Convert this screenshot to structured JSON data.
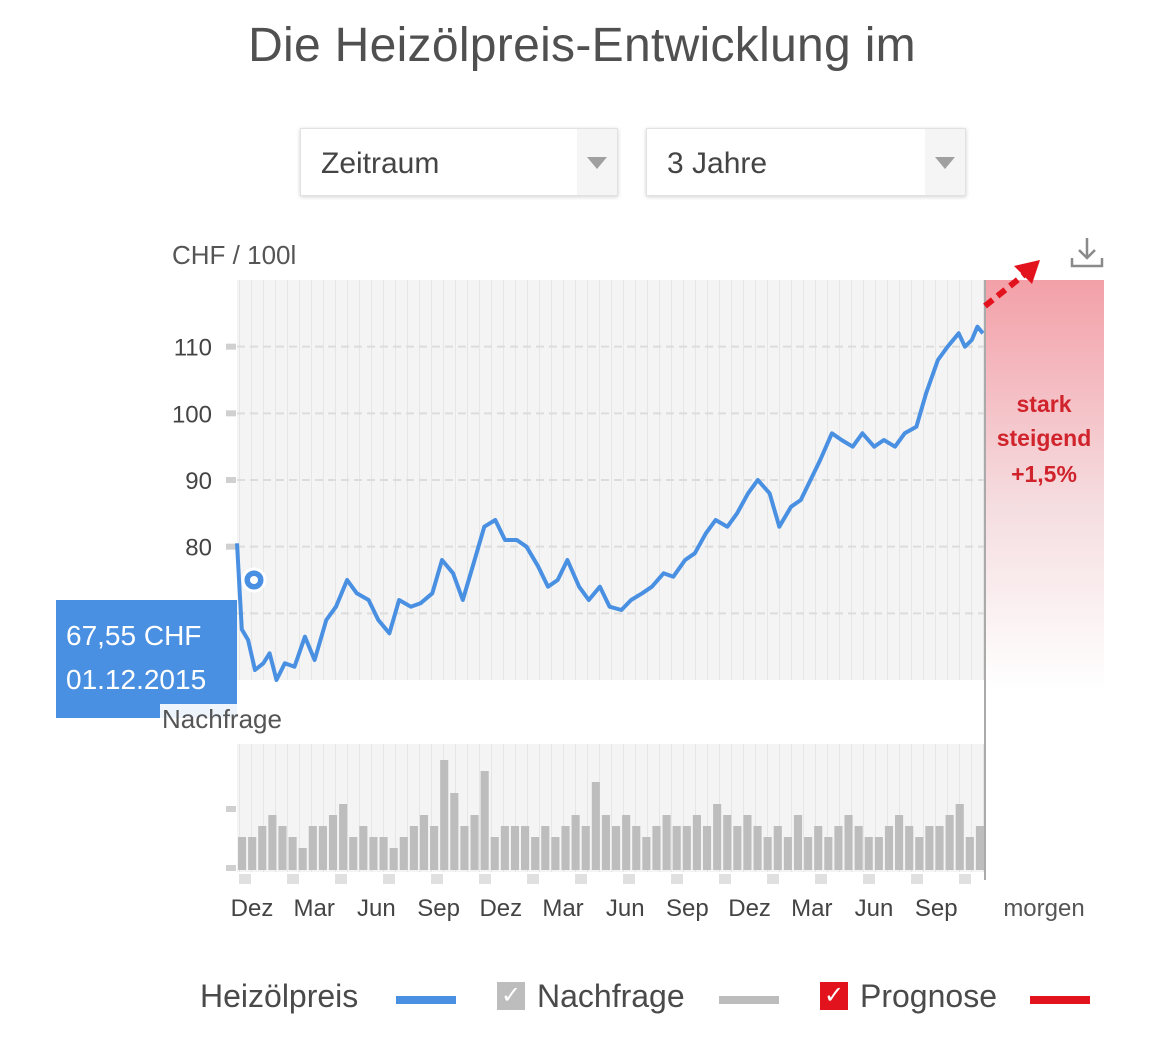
{
  "title": "Die Heizölpreis-Entwicklung im",
  "selects": {
    "period": "Zeitraum",
    "range": "3 Jahre"
  },
  "unit_label": "CHF / 100l",
  "tooltip": {
    "price": "67,55 CHF",
    "date": "01.12.2015"
  },
  "volume_label": "Nachfrage",
  "forecast": {
    "line1": "stark",
    "line2": "steigend",
    "line3": "+1,5%",
    "x_label": "morgen"
  },
  "legend": {
    "price": "Heizölpreis",
    "demand": "Nachfrage",
    "forecast": "Prognose"
  },
  "colors": {
    "price_line": "#4a90e2",
    "demand_bars": "#bdbdbd",
    "forecast": "#e2131d",
    "forecast_text": "#d0232c"
  },
  "chart_data": {
    "type": "line",
    "ylabel": "CHF / 100l",
    "ylim": [
      60,
      120
    ],
    "yticks": [
      70,
      80,
      90,
      100,
      110
    ],
    "x_tick_labels": [
      "Dez",
      "Mar",
      "Jun",
      "Sep",
      "Dez",
      "Mar",
      "Jun",
      "Sep",
      "Dez",
      "Mar",
      "Jun",
      "Sep"
    ],
    "series": [
      {
        "name": "Heizölpreis",
        "x": [
          "2015-11-24",
          "2015-12-01",
          "2015-12-10",
          "2015-12-20",
          "2016-01-01",
          "2016-01-10",
          "2016-01-20",
          "2016-02-01",
          "2016-02-15",
          "2016-03-01",
          "2016-03-15",
          "2016-04-01",
          "2016-04-15",
          "2016-05-01",
          "2016-05-15",
          "2016-06-01",
          "2016-06-15",
          "2016-07-01",
          "2016-07-15",
          "2016-08-01",
          "2016-08-15",
          "2016-09-01",
          "2016-09-15",
          "2016-10-01",
          "2016-10-15",
          "2016-11-01",
          "2016-11-15",
          "2016-12-01",
          "2016-12-15",
          "2017-01-01",
          "2017-01-15",
          "2017-02-01",
          "2017-02-15",
          "2017-03-01",
          "2017-03-15",
          "2017-04-01",
          "2017-04-15",
          "2017-05-01",
          "2017-05-15",
          "2017-06-01",
          "2017-06-15",
          "2017-07-01",
          "2017-07-15",
          "2017-08-01",
          "2017-08-15",
          "2017-09-01",
          "2017-09-15",
          "2017-10-01",
          "2017-10-15",
          "2017-11-01",
          "2017-11-15",
          "2017-12-01",
          "2017-12-15",
          "2018-01-01",
          "2018-01-15",
          "2018-02-01",
          "2018-02-15",
          "2018-03-01",
          "2018-03-15",
          "2018-04-01",
          "2018-04-15",
          "2018-05-01",
          "2018-05-15",
          "2018-06-01",
          "2018-06-15",
          "2018-07-01",
          "2018-07-15",
          "2018-08-01",
          "2018-08-15",
          "2018-09-01",
          "2018-09-15",
          "2018-10-01",
          "2018-10-10",
          "2018-10-20",
          "2018-10-28",
          "2018-11-05"
        ],
        "y": [
          80.5,
          67.6,
          66.0,
          61.5,
          62.5,
          64.0,
          60.0,
          62.5,
          62.0,
          66.5,
          63.0,
          69.0,
          71.0,
          75.0,
          73.0,
          72.0,
          69.0,
          67.0,
          72.0,
          71.0,
          71.5,
          73.0,
          78.0,
          76.0,
          72.0,
          78.0,
          83.0,
          84.0,
          81.0,
          81.0,
          80.0,
          77.0,
          74.0,
          75.0,
          78.0,
          74.0,
          72.0,
          74.0,
          71.0,
          70.5,
          72.0,
          73.0,
          74.0,
          76.0,
          75.5,
          78.0,
          79.0,
          82.0,
          84.0,
          83.0,
          85.0,
          88.0,
          90.0,
          88.0,
          83.0,
          86.0,
          87.0,
          90.0,
          93.0,
          97.0,
          96.0,
          95.0,
          97.0,
          95.0,
          96.0,
          95.0,
          97.0,
          98.0,
          103.0,
          108.0,
          110.0,
          112.0,
          110.0,
          111.0,
          113.0,
          112.0
        ]
      },
      {
        "name": "Nachfrage",
        "values": [
          3,
          3,
          4,
          5,
          4,
          3,
          2,
          4,
          4,
          5,
          6,
          3,
          4,
          3,
          3,
          2,
          3,
          4,
          5,
          4,
          10,
          7,
          4,
          5,
          9,
          3,
          4,
          4,
          4,
          3,
          4,
          3,
          4,
          5,
          4,
          8,
          5,
          4,
          5,
          4,
          3,
          4,
          5,
          4,
          4,
          5,
          4,
          6,
          5,
          4,
          5,
          4,
          3,
          4,
          3,
          5,
          3,
          4,
          3,
          4,
          5,
          4,
          3,
          3,
          4,
          5,
          4,
          3,
          4,
          4,
          5,
          6,
          3,
          4
        ]
      }
    ],
    "forecast": {
      "label": "Prognose",
      "change": "+1,5%",
      "trend": "stark steigend"
    },
    "grid": true,
    "legend_position": "bottom"
  }
}
